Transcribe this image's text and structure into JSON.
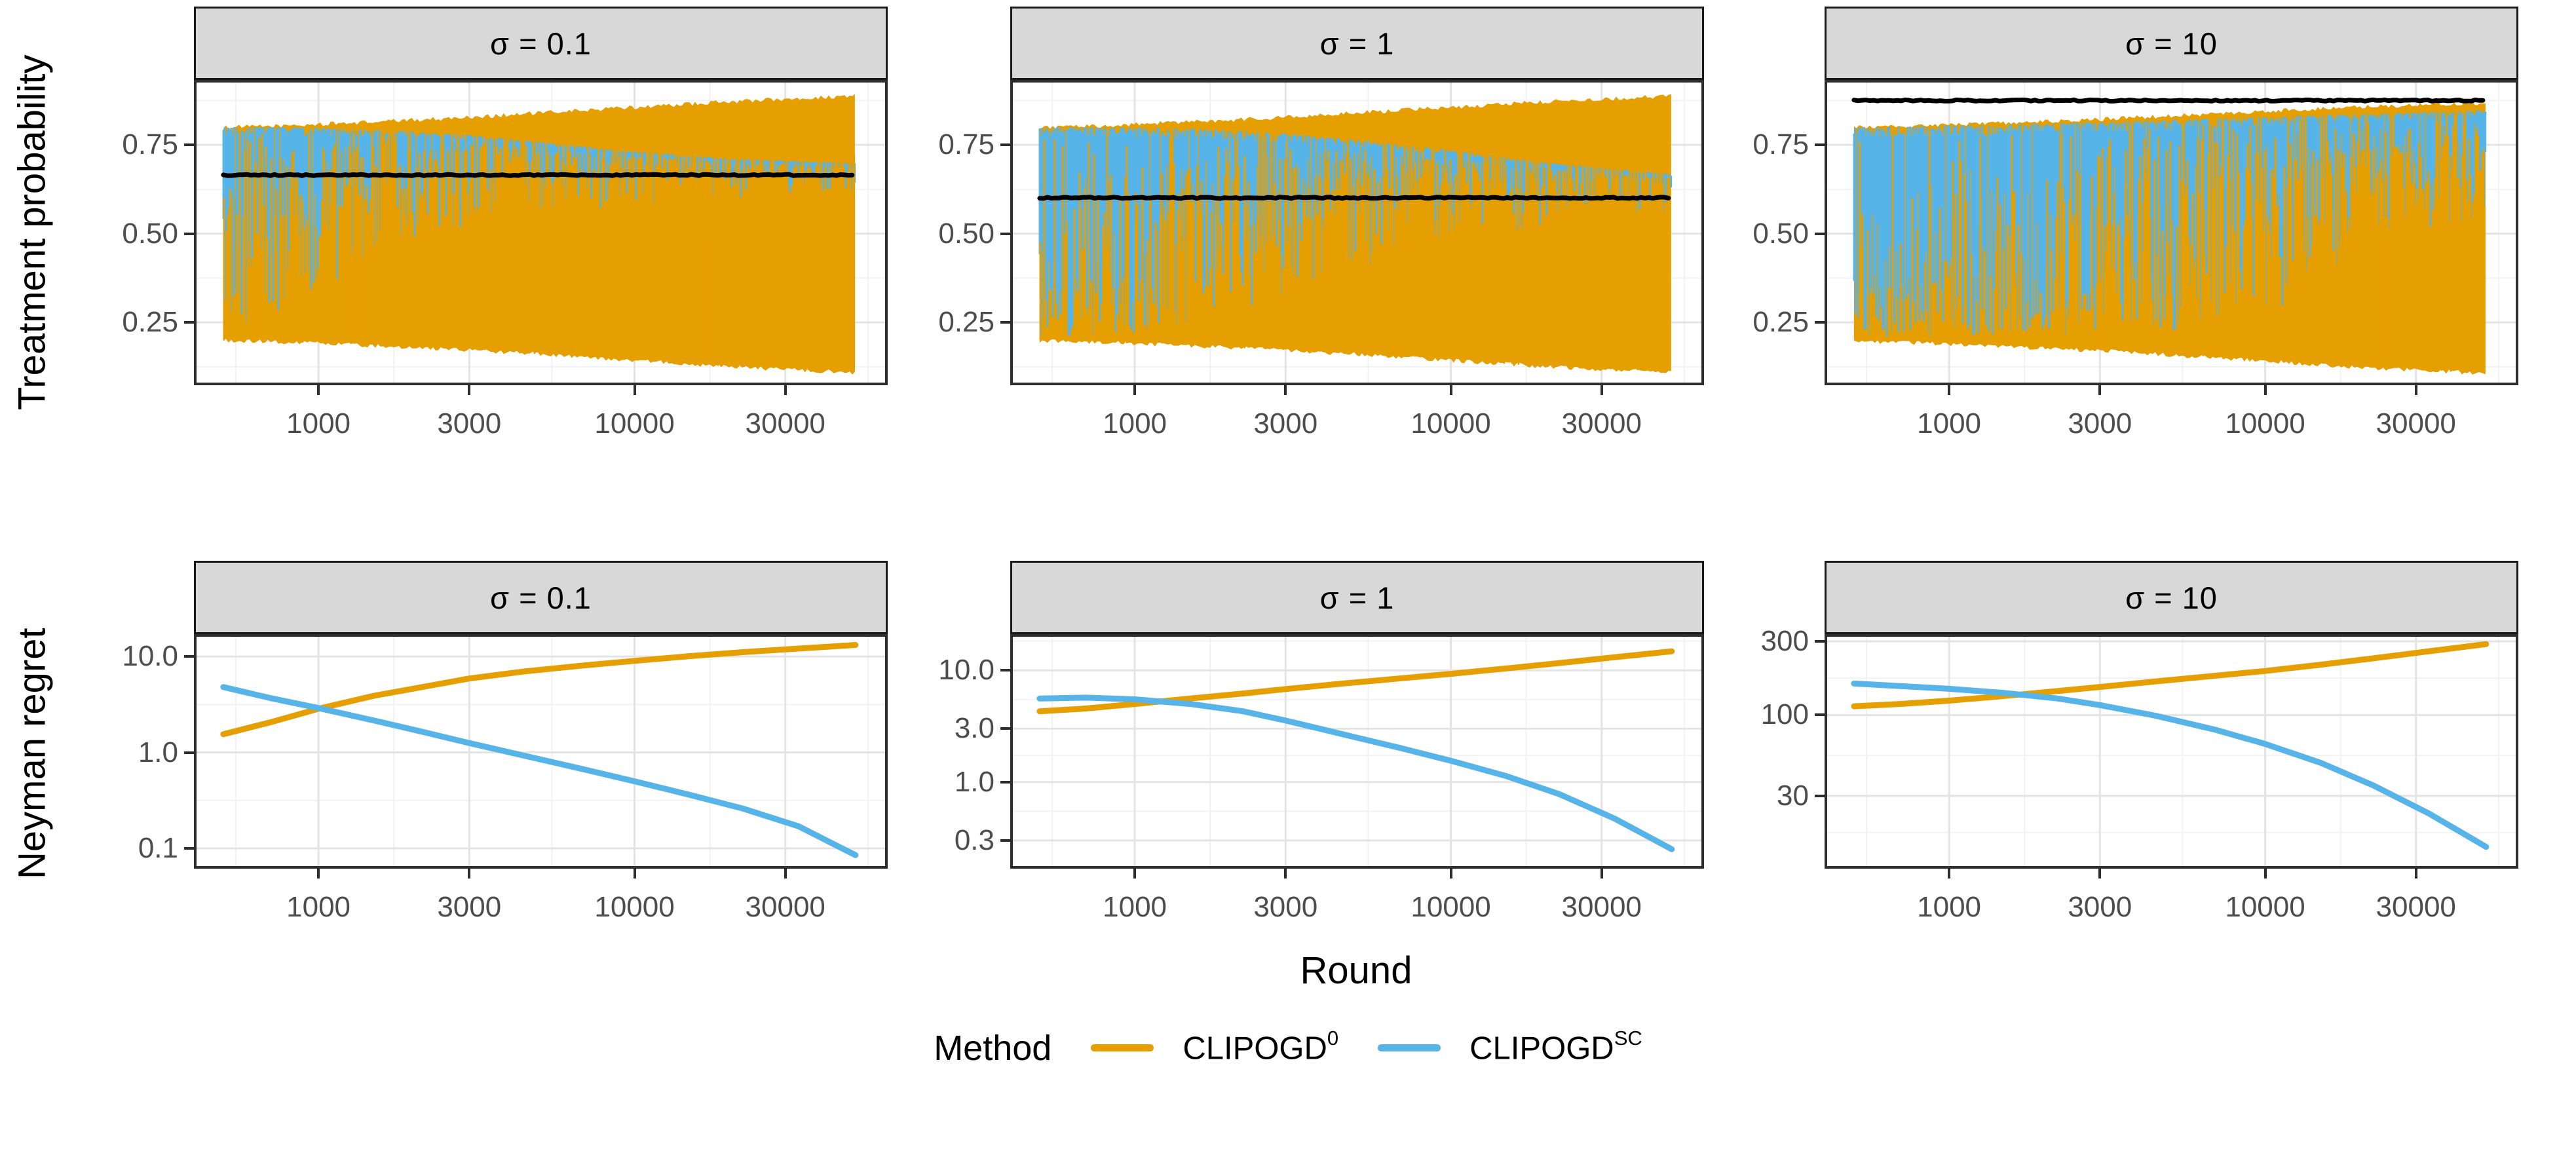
{
  "titles": {
    "y_top": "Treatment probability",
    "y_bottom": "Neyman regret",
    "x": "Round"
  },
  "legend": {
    "title": "Method",
    "items": [
      {
        "base": "CLIPOGD",
        "sup": "0",
        "color": "#E69F00"
      },
      {
        "base": "CLIPOGD",
        "sup": "SC",
        "color": "#56B4E9"
      }
    ]
  },
  "colors": {
    "orange": "#E69F00",
    "blue": "#56B4E9",
    "black": "#000000",
    "strip_bg": "#d8d8d8",
    "panel_border": "#2e2e2e",
    "grid_major": "#e4e4e4",
    "grid_minor": "#f2f2f2",
    "axis_text": "#4d4d4d"
  },
  "seed": 1234,
  "x_axis": {
    "log_domain": [
      2.606,
      4.801
    ],
    "data_log_range": [
      2.699,
      4.699
    ],
    "ticks": [
      {
        "v": 1000,
        "label": "1000"
      },
      {
        "v": 3000,
        "label": "3000"
      },
      {
        "v": 10000,
        "label": "10000"
      },
      {
        "v": 30000,
        "label": "30000"
      }
    ],
    "minor_logs": [
      2.7386,
      3.2386,
      3.7386,
      4.2386,
      4.7386
    ]
  },
  "chart_data": [
    {
      "facet": "σ = 0.1",
      "type": "noisy-band",
      "row": "top",
      "col": 0,
      "ylabel": "Treatment probability",
      "ylim": [
        0.073,
        0.933
      ],
      "yticks": [
        {
          "v": 0.75,
          "label": "0.75"
        },
        {
          "v": 0.5,
          "label": "0.50"
        },
        {
          "v": 0.25,
          "label": "0.25"
        }
      ],
      "yminor": [
        0.125,
        0.375,
        0.625,
        0.875
      ],
      "black_line": 0.665,
      "blue_cover": 0.85,
      "envelopes": {
        "lx": [
          2.699,
          2.9,
          3.0,
          3.2,
          3.477,
          3.7,
          4.0,
          4.3,
          4.699
        ],
        "orange_upper": [
          0.8,
          0.804,
          0.808,
          0.816,
          0.828,
          0.84,
          0.856,
          0.872,
          0.888
        ],
        "orange_lower": [
          0.198,
          0.194,
          0.19,
          0.183,
          0.172,
          0.16,
          0.143,
          0.125,
          0.108
        ],
        "blue_upper": [
          0.8,
          0.8,
          0.798,
          0.792,
          0.778,
          0.758,
          0.732,
          0.712,
          0.698
        ],
        "blue_lower": [
          0.23,
          0.27,
          0.33,
          0.44,
          0.52,
          0.552,
          0.582,
          0.6,
          0.615
        ],
        "blue_pow": [
          0.45,
          0.7,
          1.0,
          1.4,
          1.8,
          2.2,
          2.8,
          3.3,
          3.6
        ],
        "orange_p": [
          0.42,
          0.46,
          0.5,
          0.5,
          0.5,
          0.5,
          0.5,
          0.5,
          0.5
        ]
      }
    },
    {
      "facet": "σ = 1",
      "type": "noisy-band",
      "row": "top",
      "col": 1,
      "ylim": [
        0.073,
        0.933
      ],
      "yticks": [
        {
          "v": 0.75,
          "label": "0.75"
        },
        {
          "v": 0.5,
          "label": "0.50"
        },
        {
          "v": 0.25,
          "label": "0.25"
        }
      ],
      "yminor": [
        0.125,
        0.375,
        0.625,
        0.875
      ],
      "black_line": 0.601,
      "blue_cover": 0.93,
      "envelopes": {
        "lx": [
          2.699,
          2.9,
          3.0,
          3.2,
          3.477,
          3.7,
          4.0,
          4.3,
          4.699
        ],
        "orange_upper": [
          0.8,
          0.804,
          0.808,
          0.816,
          0.828,
          0.84,
          0.856,
          0.872,
          0.888
        ],
        "orange_lower": [
          0.198,
          0.194,
          0.19,
          0.183,
          0.172,
          0.16,
          0.143,
          0.125,
          0.108
        ],
        "blue_upper": [
          0.8,
          0.8,
          0.8,
          0.795,
          0.782,
          0.765,
          0.735,
          0.7,
          0.668
        ],
        "blue_lower": [
          0.205,
          0.205,
          0.21,
          0.24,
          0.32,
          0.395,
          0.47,
          0.52,
          0.552
        ],
        "blue_pow": [
          0.3,
          0.35,
          0.45,
          0.7,
          1.1,
          1.5,
          2.1,
          2.7,
          3.2
        ],
        "orange_p": [
          0.3,
          0.3,
          0.32,
          0.36,
          0.4,
          0.45,
          0.5,
          0.55,
          0.6
        ]
      }
    },
    {
      "facet": "σ = 10",
      "type": "noisy-band",
      "row": "top",
      "col": 2,
      "ylim": [
        0.073,
        0.933
      ],
      "yticks": [
        {
          "v": 0.75,
          "label": "0.75"
        },
        {
          "v": 0.5,
          "label": "0.50"
        },
        {
          "v": 0.25,
          "label": "0.25"
        }
      ],
      "yminor": [
        0.125,
        0.375,
        0.625,
        0.875
      ],
      "black_line": 0.875,
      "blue_cover": 0.93,
      "envelopes": {
        "lx": [
          2.699,
          2.9,
          3.0,
          3.2,
          3.477,
          3.7,
          4.0,
          4.3,
          4.699
        ],
        "orange_upper": [
          0.8,
          0.803,
          0.806,
          0.812,
          0.822,
          0.832,
          0.845,
          0.857,
          0.868
        ],
        "orange_lower": [
          0.196,
          0.192,
          0.188,
          0.181,
          0.17,
          0.158,
          0.141,
          0.123,
          0.106
        ],
        "blue_upper": [
          0.8,
          0.802,
          0.804,
          0.808,
          0.814,
          0.82,
          0.828,
          0.838,
          0.847
        ],
        "blue_lower": [
          0.205,
          0.205,
          0.205,
          0.208,
          0.212,
          0.225,
          0.27,
          0.4,
          0.52
        ],
        "blue_pow": [
          0.3,
          0.3,
          0.33,
          0.38,
          0.46,
          0.56,
          0.75,
          1.05,
          1.4
        ],
        "orange_p": [
          0.22,
          0.22,
          0.24,
          0.27,
          0.31,
          0.37,
          0.48,
          0.62,
          0.74
        ]
      }
    },
    {
      "facet": "σ = 0.1",
      "type": "line",
      "row": "bottom",
      "col": 0,
      "ylabel": "Neyman regret",
      "ylog_domain": [
        -1.212,
        1.233
      ],
      "yticks": [
        {
          "v": 10,
          "label": "10.0"
        },
        {
          "v": 1,
          "label": "1.0"
        },
        {
          "v": 0.1,
          "label": "0.1"
        }
      ],
      "yminor_logs": [
        0.5,
        -0.5
      ],
      "series": [
        {
          "name": "CLIPOGD0",
          "color_key": "orange",
          "x": [
            500,
            700,
            1000,
            1500,
            2200,
            3000,
            4500,
            7000,
            10000,
            15000,
            22000,
            33000,
            50000
          ],
          "y": [
            1.55,
            2.05,
            2.85,
            3.9,
            4.9,
            5.9,
            7.0,
            8.1,
            9.0,
            10.1,
            11.1,
            12.1,
            13.2
          ]
        },
        {
          "name": "CLIPOGDSC",
          "color_key": "blue",
          "x": [
            500,
            700,
            1000,
            1500,
            2200,
            3000,
            4500,
            7000,
            10000,
            15000,
            22000,
            33000,
            50000
          ],
          "y": [
            4.8,
            3.7,
            2.9,
            2.15,
            1.6,
            1.25,
            0.92,
            0.66,
            0.5,
            0.36,
            0.26,
            0.17,
            0.085
          ]
        }
      ]
    },
    {
      "facet": "σ = 1",
      "type": "line",
      "row": "bottom",
      "col": 1,
      "ylog_domain": [
        -0.776,
        1.324
      ],
      "yticks": [
        {
          "v": 10,
          "label": "10.0"
        },
        {
          "v": 3,
          "label": "3.0"
        },
        {
          "v": 1,
          "label": "1.0"
        },
        {
          "v": 0.3,
          "label": "0.3"
        }
      ],
      "yminor_logs": [
        1.262,
        0.739,
        0.239,
        -0.262
      ],
      "series": [
        {
          "name": "CLIPOGD0",
          "color_key": "orange",
          "x": [
            500,
            700,
            1000,
            1500,
            2200,
            3000,
            4500,
            7000,
            10000,
            15000,
            22000,
            33000,
            50000
          ],
          "y": [
            4.3,
            4.55,
            5.0,
            5.6,
            6.2,
            6.8,
            7.6,
            8.5,
            9.3,
            10.4,
            11.6,
            13.1,
            14.8
          ]
        },
        {
          "name": "CLIPOGDSC",
          "color_key": "blue",
          "x": [
            500,
            700,
            1000,
            1500,
            2200,
            3000,
            4500,
            7000,
            10000,
            15000,
            22000,
            33000,
            50000
          ],
          "y": [
            5.6,
            5.7,
            5.5,
            5.0,
            4.3,
            3.55,
            2.7,
            2.0,
            1.55,
            1.13,
            0.78,
            0.47,
            0.25
          ]
        }
      ]
    },
    {
      "facet": "σ = 10",
      "type": "line",
      "row": "bottom",
      "col": 2,
      "ylog_domain": [
        1.005,
        2.524
      ],
      "yticks": [
        {
          "v": 300,
          "label": "300"
        },
        {
          "v": 100,
          "label": "100"
        },
        {
          "v": 30,
          "label": "30"
        }
      ],
      "yminor_logs": [
        2.239,
        1.739,
        1.239
      ],
      "series": [
        {
          "name": "CLIPOGD0",
          "color_key": "orange",
          "x": [
            500,
            700,
            1000,
            1500,
            2200,
            3000,
            4500,
            7000,
            10000,
            15000,
            22000,
            33000,
            50000
          ],
          "y": [
            114,
            118,
            124,
            133,
            143,
            152,
            165,
            180,
            193,
            212,
            233,
            259,
            288
          ]
        },
        {
          "name": "CLIPOGDSC",
          "color_key": "blue",
          "x": [
            500,
            700,
            1000,
            1500,
            2200,
            3000,
            4500,
            7000,
            10000,
            15000,
            22000,
            33000,
            50000
          ],
          "y": [
            160,
            154,
            148,
            139,
            128,
            116,
            99,
            80,
            65,
            49,
            35,
            23,
            14
          ]
        }
      ]
    }
  ]
}
